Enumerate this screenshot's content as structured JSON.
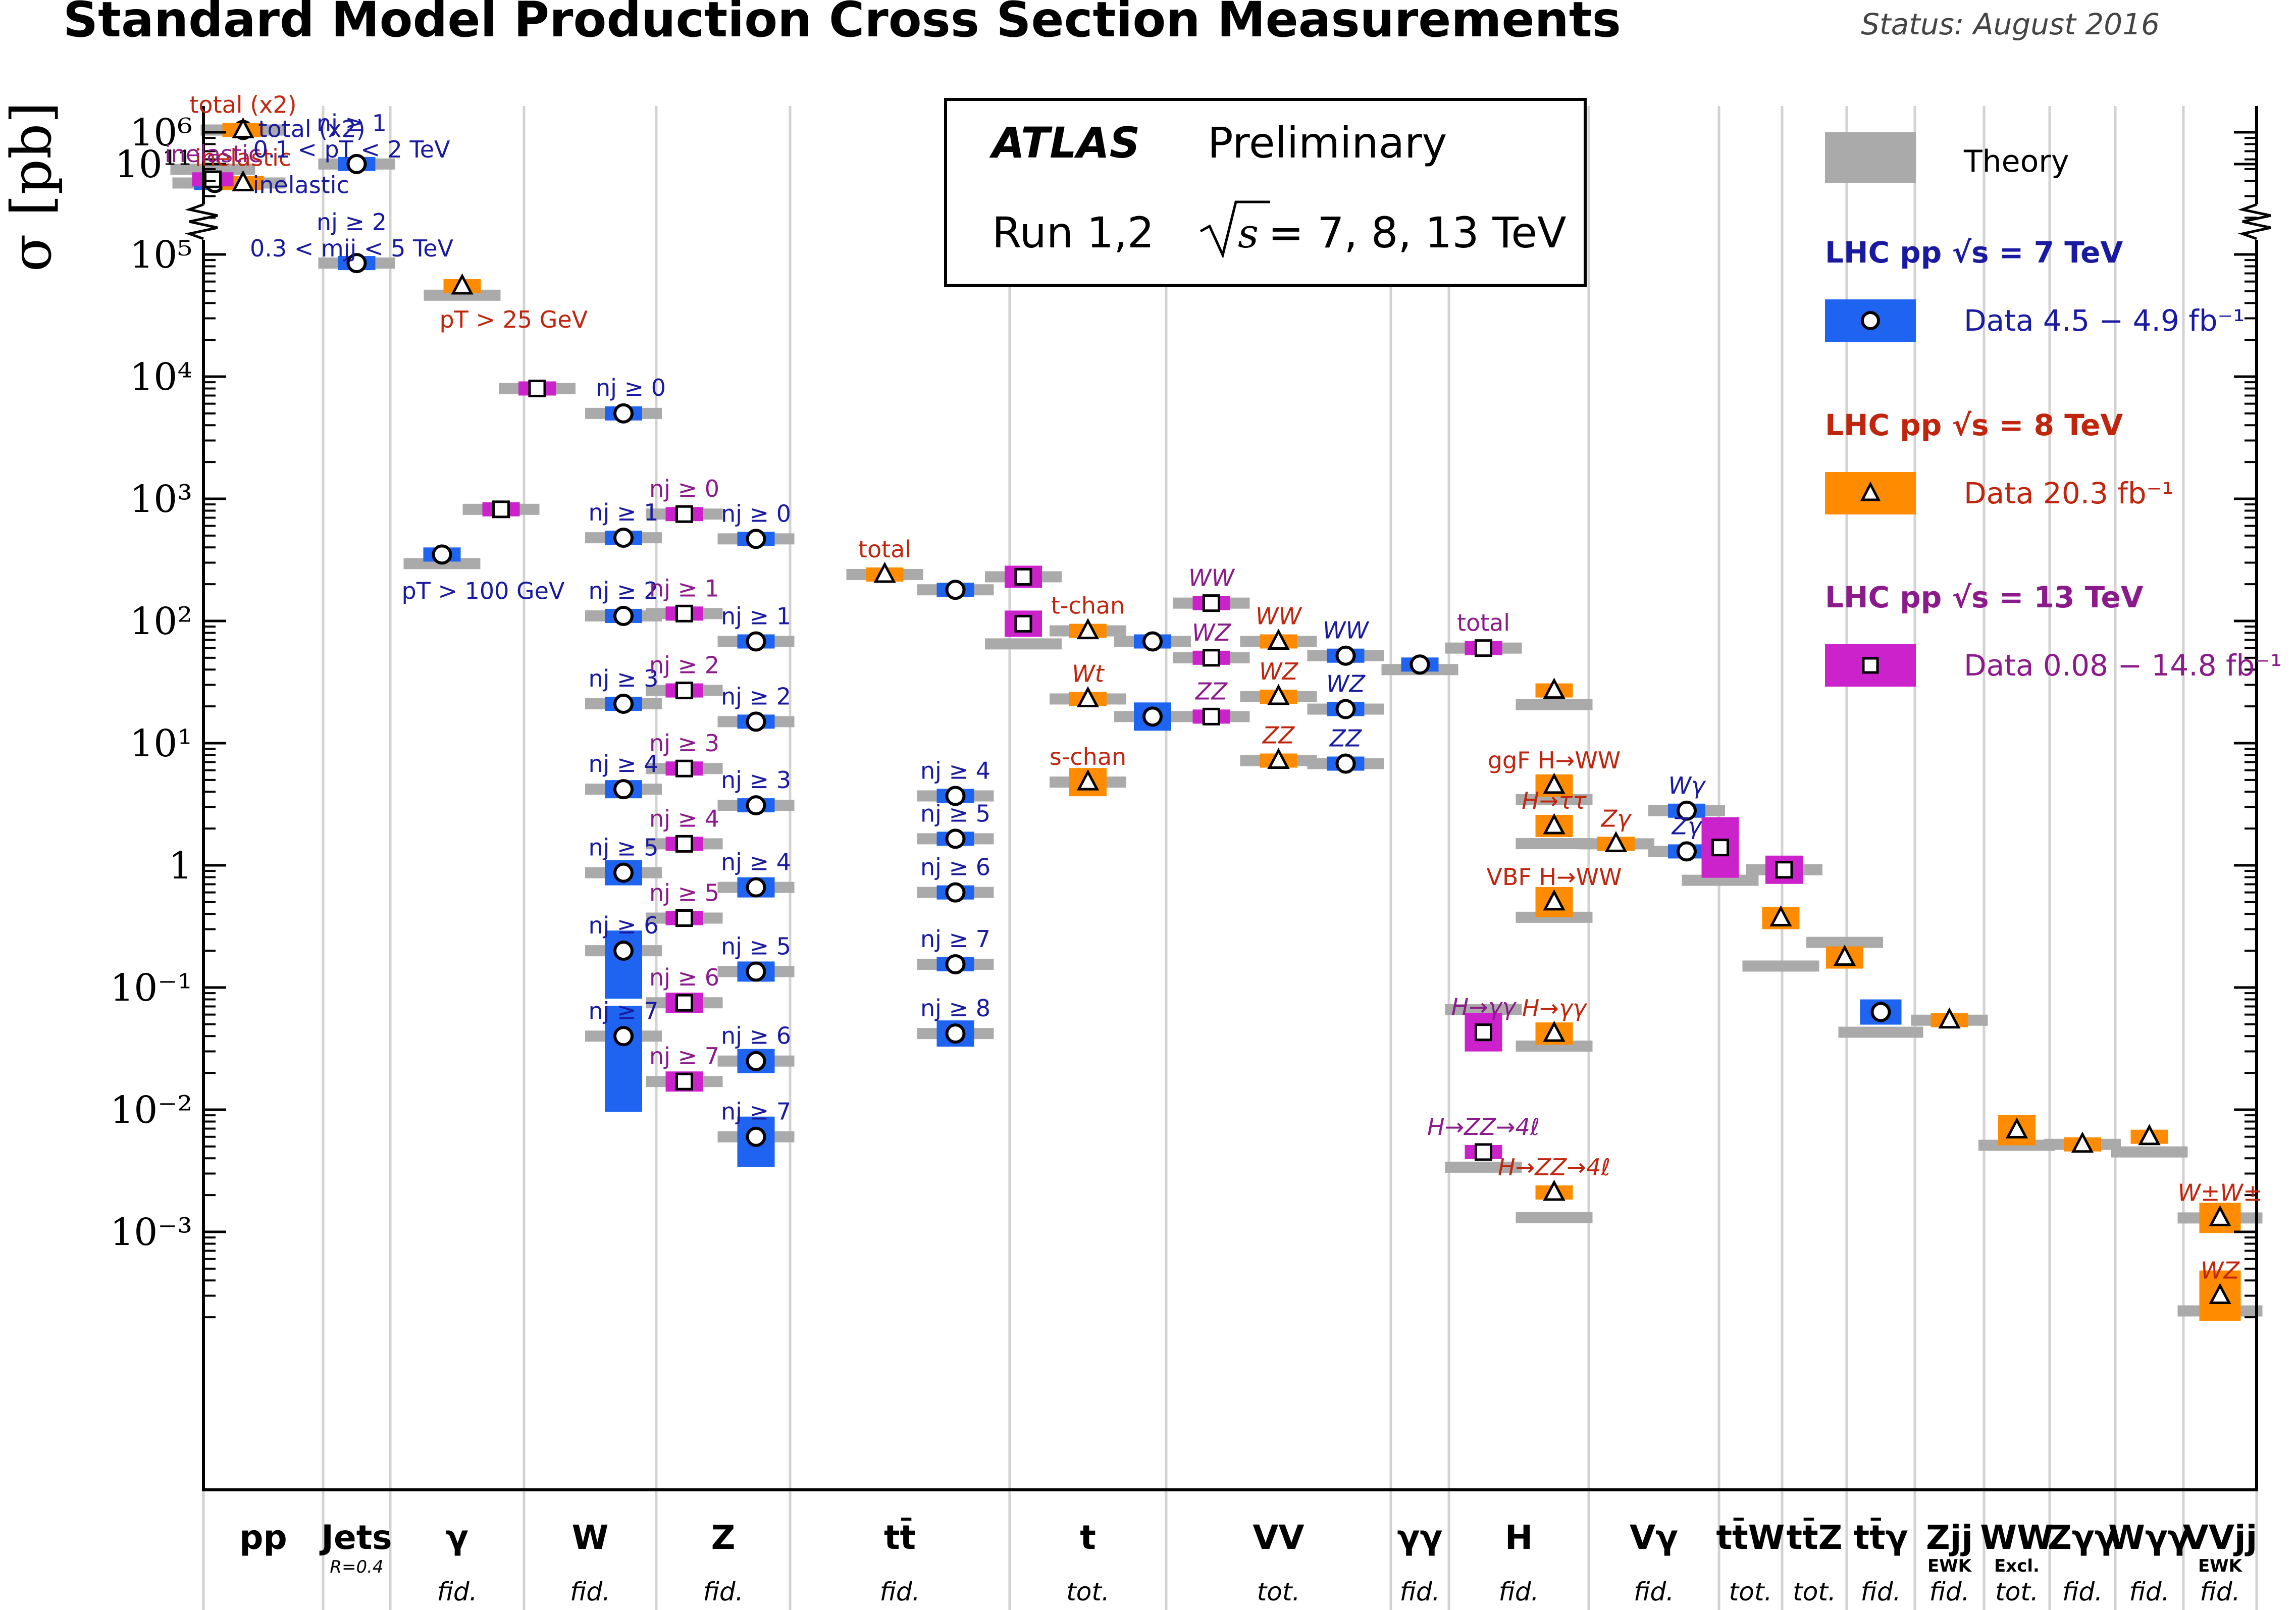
{
  "header": {
    "title": "Standard Model Production Cross Section Measurements",
    "status": "Status: August 2016"
  },
  "panel": {
    "atlas": "ATLAS",
    "preliminary": "Preliminary",
    "run": "Run 1,2",
    "sqrt_s_energies": "= 7, 8, 13 TeV"
  },
  "legend": {
    "theory": "Theory",
    "lhc7_title": "LHC pp √s = 7 TeV",
    "lhc7_data": "Data 4.5 − 4.9 fb⁻¹",
    "lhc8_title": "LHC pp √s = 8 TeV",
    "lhc8_data": "Data 20.3 fb⁻¹",
    "lhc13_title": "LHC pp √s = 13 TeV",
    "lhc13_data": "Data 0.08 − 14.8 fb⁻¹"
  },
  "colors": {
    "theory": "#aaaaaa",
    "tev7": "#1e64f0",
    "tev8": "#ff8c00",
    "tev13": "#cc22cc",
    "text7": "#1a1aa0",
    "text8": "#c0250e",
    "text13": "#8b1a8b"
  },
  "chart_data": {
    "type": "scatter",
    "ylabel": "σ [pb]",
    "y_scale": "log (broken axis between 10^6 and 10^11)",
    "y_ticks": [
      "10¹¹",
      "10⁶",
      "10⁵",
      "10⁴",
      "10³",
      "10²",
      "10¹",
      "1",
      "10⁻¹",
      "10⁻²",
      "10⁻³"
    ],
    "grid_vertical": true,
    "legend_position": "top-right",
    "categories": [
      {
        "label": "pp",
        "sub": ""
      },
      {
        "label": "Jets",
        "sub": "R=0.4"
      },
      {
        "label": "γ",
        "sub": "fid."
      },
      {
        "label": "W",
        "sub": "fid."
      },
      {
        "label": "Z",
        "sub": "fid."
      },
      {
        "label": "tt̄",
        "sub": "fid."
      },
      {
        "label": "t",
        "sub": "tot."
      },
      {
        "label": "VV",
        "sub": "tot."
      },
      {
        "label": "γγ",
        "sub": "fid."
      },
      {
        "label": "H",
        "sub": "fid."
      },
      {
        "label": "Vγ",
        "sub": "fid."
      },
      {
        "label": "tt̄W",
        "sub": "tot."
      },
      {
        "label": "tt̄Z",
        "sub": "tot."
      },
      {
        "label": "tt̄γ",
        "sub": "fid."
      },
      {
        "label": "Zjj",
        "sub": "fid.",
        "extra": "EWK"
      },
      {
        "label": "WW",
        "sub": "tot.",
        "extra": "Excl."
      },
      {
        "label": "Zγγ",
        "sub": "fid."
      },
      {
        "label": "Wγγ",
        "sub": "fid."
      },
      {
        "label": "VVjj",
        "sub": "fid.",
        "extra": "EWK"
      }
    ],
    "points": [
      {
        "x": "pp",
        "energy": "7 TeV",
        "y": 70000000000.0,
        "label": "inelastic"
      },
      {
        "x": "pp",
        "energy": "8 TeV",
        "y": 70000000000.0,
        "label": "inelastic"
      },
      {
        "x": "pp",
        "energy": "13 TeV",
        "y": 75000000000.0,
        "label": "inelastic"
      },
      {
        "x": "pp",
        "energy": "7 TeV",
        "y": 190000000000.0,
        "label": "total (x2)"
      },
      {
        "x": "pp",
        "energy": "8 TeV",
        "y": 190000000000.0,
        "label": "total (x2)"
      },
      {
        "x": "Jets",
        "energy": "7 TeV",
        "y": 550000.0,
        "label": "nj ≥ 1, 0.1 < pT < 2 TeV"
      },
      {
        "x": "Jets",
        "energy": "7 TeV",
        "y": 85000.0,
        "label": "nj ≥ 2, 0.3 < mjj < 5 TeV"
      },
      {
        "x": "γ",
        "energy": "8 TeV",
        "y": 55000.0,
        "label": "pT > 25 GeV"
      },
      {
        "x": "γ",
        "energy": "7 TeV",
        "y": 350,
        "label": "pT > 100 GeV"
      },
      {
        "x": "W",
        "energy": "13 TeV",
        "y": 8000,
        "label": ""
      },
      {
        "x": "W",
        "energy": "7 TeV",
        "y": 5000,
        "label": "nj ≥ 0"
      },
      {
        "x": "W",
        "energy": "7 TeV",
        "y": 480,
        "label": "nj ≥ 1"
      },
      {
        "x": "W",
        "energy": "7 TeV",
        "y": 110,
        "label": "nj ≥ 2"
      },
      {
        "x": "W",
        "energy": "7 TeV",
        "y": 21,
        "label": "nj ≥ 3"
      },
      {
        "x": "W",
        "energy": "7 TeV",
        "y": 4.2,
        "label": "nj ≥ 4"
      },
      {
        "x": "W",
        "energy": "7 TeV",
        "y": 0.87,
        "label": "nj ≥ 5"
      },
      {
        "x": "W",
        "energy": "7 TeV",
        "y": 0.2,
        "label": "nj ≥ 6"
      },
      {
        "x": "W",
        "energy": "7 TeV",
        "y": 0.04,
        "label": "nj ≥ 7"
      },
      {
        "x": "Z",
        "energy": "13 TeV",
        "y": 750,
        "label": "nj ≥ 0"
      },
      {
        "x": "Z",
        "energy": "13 TeV",
        "y": 115,
        "label": "nj ≥ 1"
      },
      {
        "x": "Z",
        "energy": "13 TeV",
        "y": 27,
        "label": "nj ≥ 2"
      },
      {
        "x": "Z",
        "energy": "13 TeV",
        "y": 6.2,
        "label": "nj ≥ 3"
      },
      {
        "x": "Z",
        "energy": "13 TeV",
        "y": 1.5,
        "label": "nj ≥ 4"
      },
      {
        "x": "Z",
        "energy": "13 TeV",
        "y": 0.37,
        "label": "nj ≥ 5"
      },
      {
        "x": "Z",
        "energy": "13 TeV",
        "y": 0.075,
        "label": "nj ≥ 6"
      },
      {
        "x": "Z",
        "energy": "13 TeV",
        "y": 0.017,
        "label": "nj ≥ 7"
      },
      {
        "x": "Z",
        "energy": "7 TeV",
        "y": 470,
        "label": "nj ≥ 0"
      },
      {
        "x": "Z",
        "energy": "7 TeV",
        "y": 68,
        "label": "nj ≥ 1"
      },
      {
        "x": "Z",
        "energy": "7 TeV",
        "y": 15,
        "label": "nj ≥ 2"
      },
      {
        "x": "Z",
        "energy": "7 TeV",
        "y": 3.1,
        "label": "nj ≥ 3"
      },
      {
        "x": "Z",
        "energy": "7 TeV",
        "y": 0.66,
        "label": "nj ≥ 4"
      },
      {
        "x": "Z",
        "energy": "7 TeV",
        "y": 0.135,
        "label": "nj ≥ 5"
      },
      {
        "x": "Z",
        "energy": "7 TeV",
        "y": 0.025,
        "label": "nj ≥ 6"
      },
      {
        "x": "Z",
        "energy": "7 TeV",
        "y": 0.006,
        "label": "nj ≥ 7"
      },
      {
        "x": "Z",
        "energy": "13 TeV",
        "y": 820,
        "label": ""
      },
      {
        "x": "tt̄",
        "energy": "8 TeV",
        "y": 240,
        "label": "total"
      },
      {
        "x": "tt̄",
        "energy": "7 TeV",
        "y": 180,
        "label": ""
      },
      {
        "x": "tt̄",
        "energy": "7 TeV",
        "y": 3.7,
        "label": "nj ≥ 4"
      },
      {
        "x": "tt̄",
        "energy": "7 TeV",
        "y": 1.65,
        "label": "nj ≥ 5"
      },
      {
        "x": "tt̄",
        "energy": "7 TeV",
        "y": 0.6,
        "label": "nj ≥ 6"
      },
      {
        "x": "tt̄",
        "energy": "7 TeV",
        "y": 0.155,
        "label": "nj ≥ 7"
      },
      {
        "x": "tt̄",
        "energy": "7 TeV",
        "y": 0.042,
        "label": "nj ≥ 8"
      },
      {
        "x": "t",
        "energy": "13 TeV",
        "y": 230,
        "label": ""
      },
      {
        "x": "t",
        "energy": "13 TeV",
        "y": 95,
        "label": ""
      },
      {
        "x": "t",
        "energy": "8 TeV",
        "y": 83,
        "label": "t-chan"
      },
      {
        "x": "t",
        "energy": "7 TeV",
        "y": 68,
        "label": ""
      },
      {
        "x": "t",
        "energy": "8 TeV",
        "y": 23,
        "label": "Wt"
      },
      {
        "x": "t",
        "energy": "7 TeV",
        "y": 16.5,
        "label": ""
      },
      {
        "x": "t",
        "energy": "8 TeV",
        "y": 4.8,
        "label": "s-chan"
      },
      {
        "x": "VV",
        "energy": "13 TeV",
        "y": 140,
        "label": "WW"
      },
      {
        "x": "VV",
        "energy": "13 TeV",
        "y": 50,
        "label": "WZ"
      },
      {
        "x": "VV",
        "energy": "13 TeV",
        "y": 16.5,
        "label": "ZZ"
      },
      {
        "x": "VV",
        "energy": "8 TeV",
        "y": 68,
        "label": "WW"
      },
      {
        "x": "VV",
        "energy": "8 TeV",
        "y": 24,
        "label": "WZ"
      },
      {
        "x": "VV",
        "energy": "8 TeV",
        "y": 7.2,
        "label": "ZZ"
      },
      {
        "x": "VV",
        "energy": "7 TeV",
        "y": 52,
        "label": "WW"
      },
      {
        "x": "VV",
        "energy": "7 TeV",
        "y": 19,
        "label": "WZ"
      },
      {
        "x": "VV",
        "energy": "7 TeV",
        "y": 6.8,
        "label": "ZZ"
      },
      {
        "x": "γγ",
        "energy": "7 TeV",
        "y": 44,
        "label": ""
      },
      {
        "x": "H",
        "energy": "13 TeV",
        "y": 60,
        "label": "total"
      },
      {
        "x": "H",
        "energy": "8 TeV",
        "y": 27,
        "label": ""
      },
      {
        "x": "H",
        "energy": "8 TeV",
        "y": 4.5,
        "label": "ggF H→WW"
      },
      {
        "x": "H",
        "energy": "8 TeV",
        "y": 2.1,
        "label": "H→ττ"
      },
      {
        "x": "H",
        "energy": "8 TeV",
        "y": 0.5,
        "label": "VBF H→WW"
      },
      {
        "x": "H",
        "energy": "13 TeV",
        "y": 0.043,
        "label": "H→γγ"
      },
      {
        "x": "H",
        "energy": "8 TeV",
        "y": 0.042,
        "label": "H→γγ"
      },
      {
        "x": "H",
        "energy": "13 TeV",
        "y": 0.0045,
        "label": "H→ZZ→4ℓ"
      },
      {
        "x": "H",
        "energy": "8 TeV",
        "y": 0.0021,
        "label": "H→ZZ→4ℓ"
      },
      {
        "x": "Vγ",
        "energy": "8 TeV",
        "y": 1.5,
        "label": "Zγ"
      },
      {
        "x": "Vγ",
        "energy": "7 TeV",
        "y": 2.8,
        "label": "Wγ"
      },
      {
        "x": "Vγ",
        "energy": "7 TeV",
        "y": 1.3,
        "label": "Zγ"
      },
      {
        "x": "tt̄W",
        "energy": "13 TeV",
        "y": 1.4,
        "label": ""
      },
      {
        "x": "tt̄W",
        "energy": "8 TeV",
        "y": 0.37,
        "label": ""
      },
      {
        "x": "tt̄Z",
        "energy": "13 TeV",
        "y": 0.92,
        "label": ""
      },
      {
        "x": "tt̄Z",
        "energy": "8 TeV",
        "y": 0.176,
        "label": ""
      },
      {
        "x": "tt̄γ",
        "energy": "7 TeV",
        "y": 0.063,
        "label": ""
      },
      {
        "x": "Zjj",
        "energy": "8 TeV",
        "y": 0.054,
        "label": ""
      },
      {
        "x": "WW",
        "energy": "8 TeV",
        "y": 0.0068,
        "label": ""
      },
      {
        "x": "Zγγ",
        "energy": "8 TeV",
        "y": 0.0052,
        "label": ""
      },
      {
        "x": "Wγγ",
        "energy": "8 TeV",
        "y": 0.006,
        "label": ""
      },
      {
        "x": "VVjj",
        "energy": "8 TeV",
        "y": 0.0013,
        "label": "W±W±"
      },
      {
        "x": "VVjj",
        "energy": "8 TeV",
        "y": 0.0003,
        "label": "WZ"
      }
    ]
  }
}
